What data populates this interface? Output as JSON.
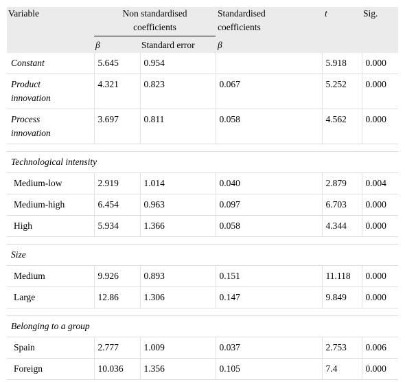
{
  "header": {
    "variable": "Variable",
    "non_std_line1": "Non standardised",
    "non_std_line2": "coefficients",
    "std_line1": "Standardised",
    "std_line2": "coefficients",
    "t": "t",
    "sig": "Sig.",
    "beta": "β",
    "std_error": "Standard error",
    "beta_std": "β"
  },
  "rows": [
    {
      "label": "Constant",
      "beta": "5.645",
      "se": "0.954",
      "std_beta": "",
      "t": "5.918",
      "sig": "0.000"
    },
    {
      "label_line1": "Product",
      "label_line2": "innovation",
      "beta": "4.321",
      "se": "0.823",
      "std_beta": "0.067",
      "t": "5.252",
      "sig": "0.000"
    },
    {
      "label_line1": "Process",
      "label_line2": "innovation",
      "beta": "3.697",
      "se": "0.811",
      "std_beta": "0.058",
      "t": "4.562",
      "sig": "0.000"
    }
  ],
  "sections": [
    {
      "title": "Technological intensity",
      "rows": [
        {
          "label": "Medium-low",
          "beta": "2.919",
          "se": "1.014",
          "std_beta": "0.040",
          "t": "2.879",
          "sig": "0.004"
        },
        {
          "label": "Medium-high",
          "beta": "6.454",
          "se": "0.963",
          "std_beta": "0.097",
          "t": "6.703",
          "sig": "0.000"
        },
        {
          "label": "High",
          "beta": "5.934",
          "se": "1.366",
          "std_beta": "0.058",
          "t": "4.344",
          "sig": "0.000"
        }
      ]
    },
    {
      "title": "Size",
      "rows": [
        {
          "label": "Medium",
          "beta": "9.926",
          "se": "0.893",
          "std_beta": "0.151",
          "t": "11.118",
          "sig": "0.000"
        },
        {
          "label": "Large",
          "beta": "12.86",
          "se": "1.306",
          "std_beta": "0.147",
          "t": "9.849",
          "sig": "0.000"
        }
      ]
    },
    {
      "title": "Belonging to a group",
      "rows": [
        {
          "label": "Spain",
          "beta": "2.777",
          "se": "1.009",
          "std_beta": "0.037",
          "t": "2.753",
          "sig": "0.006"
        },
        {
          "label": "Foreign",
          "beta": "10.036",
          "se": "1.356",
          "std_beta": "0.105",
          "t": "7.4",
          "sig": "0.000"
        }
      ]
    }
  ],
  "colors": {
    "header_bg": "#ebebeb",
    "rule": "#dddddd"
  }
}
